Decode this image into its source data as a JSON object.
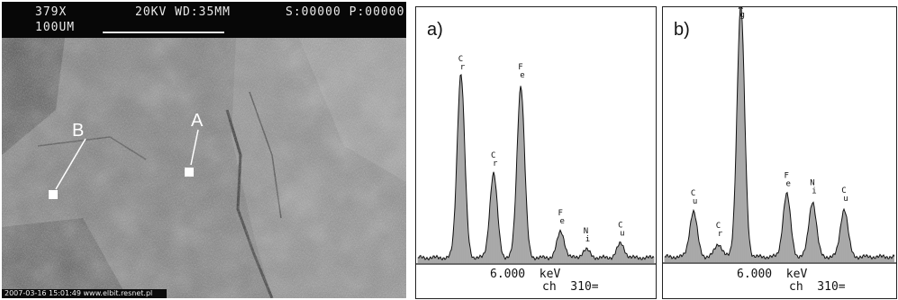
{
  "sem": {
    "magnification": "379X",
    "voltage_wd": "20KV WD:35MM",
    "s_p": "S:00000 P:00000",
    "scale_label": "100UM",
    "point_a": "A",
    "point_b": "B",
    "footer": "2007-03-16 15:01:49  www.elbit.resnet.pl"
  },
  "spectra": [
    {
      "label": "a)",
      "axis_kev": "6.000  keV",
      "axis_ch": "ch  310=",
      "peaks": [
        {
          "element": "Cr",
          "energy_kev": 5.41,
          "height": 0.92
        },
        {
          "element": "Cr",
          "energy_kev": 5.95,
          "height": 0.42
        },
        {
          "element": "Fe",
          "energy_kev": 6.4,
          "height": 0.86
        },
        {
          "element": "Fe",
          "energy_kev": 7.06,
          "height": 0.13
        },
        {
          "element": "Ni",
          "energy_kev": 7.48,
          "height": 0.04
        },
        {
          "element": "Cu",
          "energy_kev": 8.05,
          "height": 0.07
        }
      ]
    },
    {
      "label": "b)",
      "axis_kev": "6.000  keV",
      "axis_ch": "ch  310=",
      "peaks": [
        {
          "element": "Cu",
          "energy_kev": 5.1,
          "height": 0.18
        },
        {
          "element": "Cr",
          "energy_kev": 5.45,
          "height": 0.05
        },
        {
          "element": "Ag",
          "energy_kev": 5.76,
          "height": 1.0
        },
        {
          "element": "Fe",
          "energy_kev": 6.4,
          "height": 0.25
        },
        {
          "element": "Ni",
          "energy_kev": 6.76,
          "height": 0.22
        },
        {
          "element": "Cu",
          "energy_kev": 7.2,
          "height": 0.19
        }
      ]
    }
  ]
}
